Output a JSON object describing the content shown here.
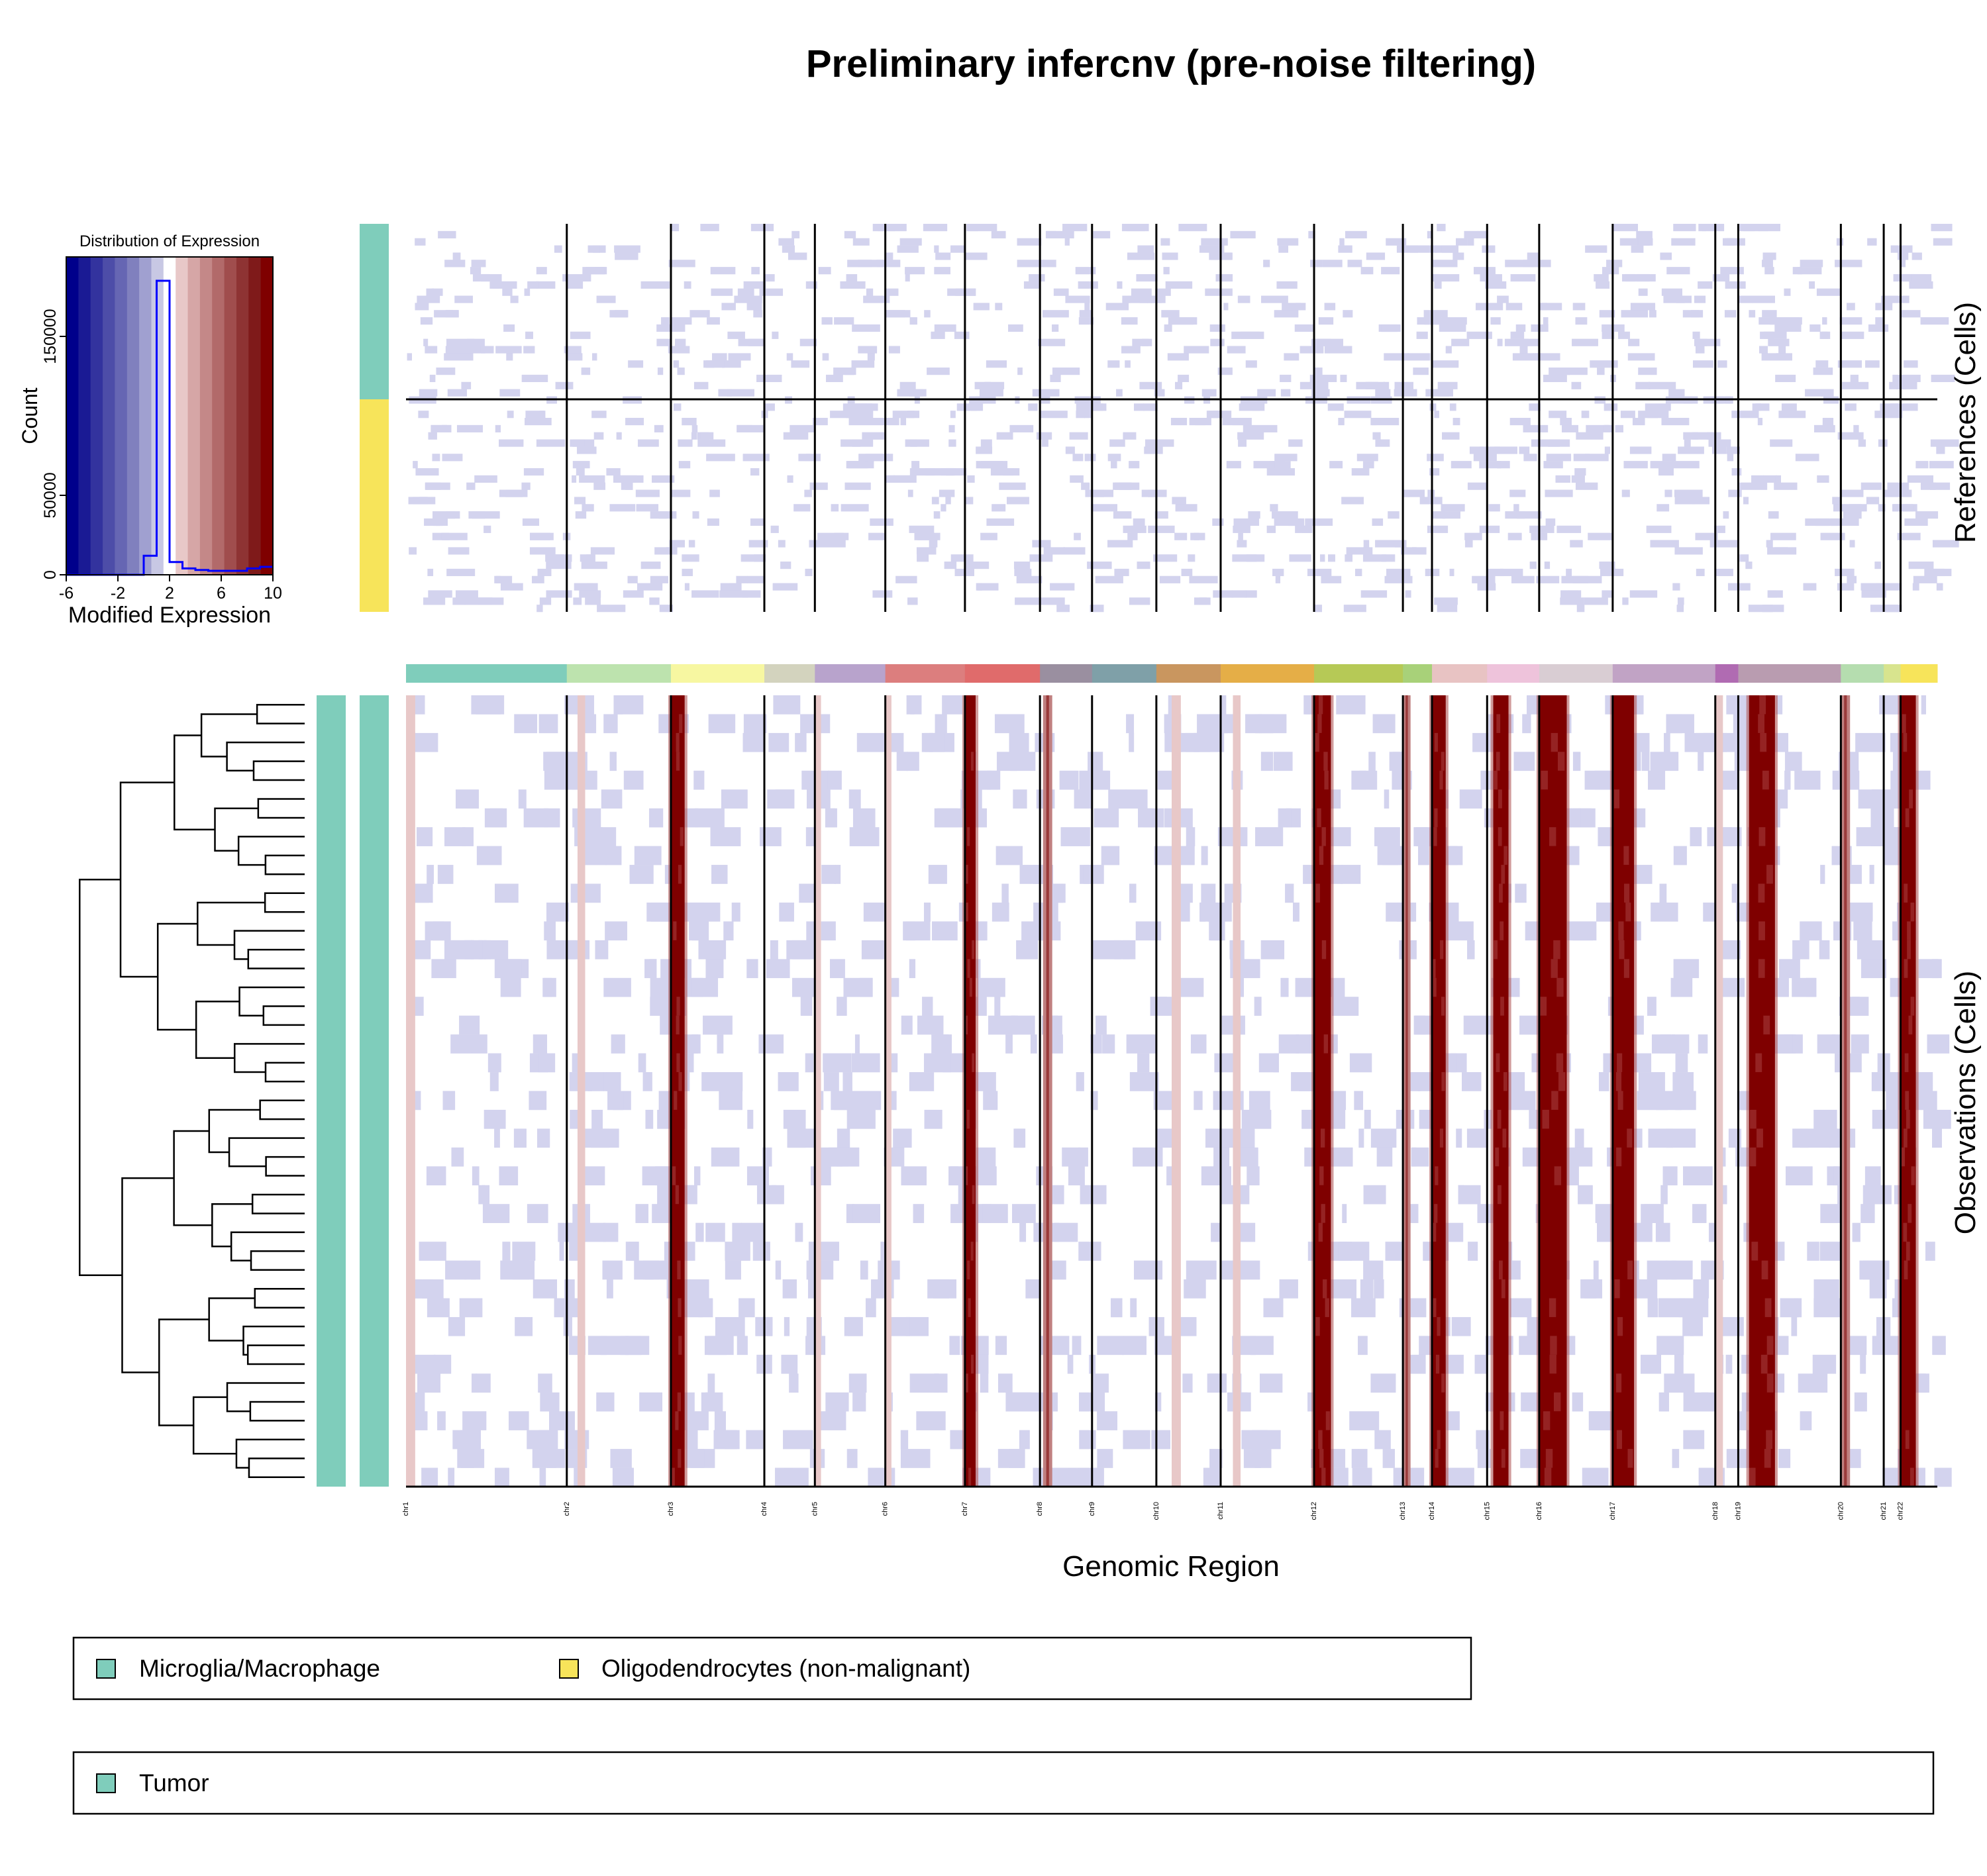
{
  "title": "Preliminary infercnv (pre-noise filtering)",
  "colors": {
    "low": "#00008B",
    "neutral": "#FFFFFF",
    "high": "#7F0000",
    "mild_loss": "#D3D3EE",
    "mild_gain": "#E8C8C8",
    "histogram": "#0000FF"
  },
  "chart_data": [
    {
      "type": "histogram",
      "title": "Distribution of Expression",
      "xlabel": "Modified Expression",
      "ylabel": "Count",
      "xlim": [
        -6,
        10
      ],
      "ylim": [
        0,
        200000
      ],
      "xticks": [
        "-6",
        "-2",
        "2",
        "6",
        "10"
      ],
      "yticks": [
        "0",
        "50000",
        "150000"
      ],
      "color_key": [
        "#00008B",
        "#1A1A94",
        "#33339E",
        "#4D4DA8",
        "#6666B3",
        "#8080BE",
        "#A0A0D0",
        "#C8C8E4",
        "#FFFFFF",
        "#E8C8C8",
        "#D6A6A6",
        "#C48888",
        "#B26A6A",
        "#A04D4D",
        "#8E3333",
        "#7F1A1A",
        "#7F0000"
      ],
      "bins": [
        {
          "x": [
            -6,
            0
          ],
          "count": 0
        },
        {
          "x": [
            0,
            1
          ],
          "count": 12000
        },
        {
          "x": [
            1,
            2
          ],
          "count": 185000
        },
        {
          "x": [
            2,
            3
          ],
          "count": 8000
        },
        {
          "x": [
            3,
            4
          ],
          "count": 4000
        },
        {
          "x": [
            4,
            5
          ],
          "count": 3000
        },
        {
          "x": [
            5,
            8
          ],
          "count": 2500
        },
        {
          "x": [
            8,
            9
          ],
          "count": 4000
        },
        {
          "x": [
            9,
            10
          ],
          "count": 5000
        }
      ]
    },
    {
      "type": "heatmap",
      "xlabel": "Genomic Region",
      "references_label": "References (Cells)",
      "observations_label": "Observations (Cells)",
      "chromosomes": [
        {
          "name": "chr1",
          "start": 0,
          "end": 10.5,
          "color": "#7FCDBB"
        },
        {
          "name": "chr2",
          "start": 10.5,
          "end": 17.3,
          "color": "#BDE3AE"
        },
        {
          "name": "chr3",
          "start": 17.3,
          "end": 23.4,
          "color": "#F7F7A1"
        },
        {
          "name": "chr4",
          "start": 23.4,
          "end": 26.7,
          "color": "#D3D3BE"
        },
        {
          "name": "chr5",
          "start": 26.7,
          "end": 31.3,
          "color": "#B8A3CC"
        },
        {
          "name": "chr6",
          "start": 31.3,
          "end": 36.5,
          "color": "#DC7E7E"
        },
        {
          "name": "chr7",
          "start": 36.5,
          "end": 41.4,
          "color": "#E06B6B"
        },
        {
          "name": "chr8",
          "start": 41.4,
          "end": 44.8,
          "color": "#9A8FA0"
        },
        {
          "name": "chr9",
          "start": 44.8,
          "end": 49.0,
          "color": "#7FA0A8"
        },
        {
          "name": "chr10",
          "start": 49.0,
          "end": 53.2,
          "color": "#C9965F"
        },
        {
          "name": "chr11",
          "start": 53.2,
          "end": 59.3,
          "color": "#E5AE47"
        },
        {
          "name": "chr12",
          "start": 59.3,
          "end": 65.1,
          "color": "#B6C956"
        },
        {
          "name": "chr13",
          "start": 65.1,
          "end": 67.0,
          "color": "#A8D179"
        },
        {
          "name": "chr14",
          "start": 67.0,
          "end": 70.6,
          "color": "#E8C3C3"
        },
        {
          "name": "chr15",
          "start": 70.6,
          "end": 74.0,
          "color": "#EEC3DB"
        },
        {
          "name": "chr16",
          "start": 74.0,
          "end": 78.8,
          "color": "#D9CDD3"
        },
        {
          "name": "chr17",
          "start": 78.8,
          "end": 85.5,
          "color": "#C1A3C5"
        },
        {
          "name": "chr18",
          "start": 85.5,
          "end": 87.0,
          "color": "#B06BB2"
        },
        {
          "name": "chr19",
          "start": 87.0,
          "end": 93.7,
          "color": "#B99CB0"
        },
        {
          "name": "chr20",
          "start": 93.7,
          "end": 96.5,
          "color": "#B5DDAF"
        },
        {
          "name": "chr21",
          "start": 96.5,
          "end": 97.6,
          "color": "#D8E48E"
        },
        {
          "name": "chr22",
          "start": 97.6,
          "end": 100.0,
          "color": "#F7E45A"
        }
      ],
      "gained_regions": [
        {
          "chrom": "chr1",
          "from": 0,
          "to": 0.6,
          "level": "mild"
        },
        {
          "chrom": "chr2",
          "from": 11.2,
          "to": 11.7,
          "level": "mild"
        },
        {
          "chrom": "chr3",
          "from": 17.3,
          "to": 18.2,
          "level": "strong"
        },
        {
          "chrom": "chr5",
          "from": 26.7,
          "to": 27.1,
          "level": "mild"
        },
        {
          "chrom": "chr6",
          "from": 31.3,
          "to": 31.7,
          "level": "mild"
        },
        {
          "chrom": "chr7",
          "from": 36.5,
          "to": 37.2,
          "level": "strong"
        },
        {
          "chrom": "chr8",
          "from": 41.6,
          "to": 42.2,
          "level": "medium"
        },
        {
          "chrom": "chr10",
          "from": 50.0,
          "to": 50.6,
          "level": "mild"
        },
        {
          "chrom": "chr11",
          "from": 54.0,
          "to": 54.5,
          "level": "mild"
        },
        {
          "chrom": "chr12",
          "from": 59.3,
          "to": 60.4,
          "level": "strong"
        },
        {
          "chrom": "chr13",
          "from": 65.1,
          "to": 65.6,
          "level": "medium"
        },
        {
          "chrom": "chr14",
          "from": 67.0,
          "to": 67.9,
          "level": "strong"
        },
        {
          "chrom": "chr15",
          "from": 71.0,
          "to": 72.0,
          "level": "strong"
        },
        {
          "chrom": "chr16",
          "from": 74.0,
          "to": 75.8,
          "level": "strong"
        },
        {
          "chrom": "chr17",
          "from": 78.8,
          "to": 80.2,
          "level": "strong"
        },
        {
          "chrom": "chr18",
          "from": 85.5,
          "to": 86.0,
          "level": "mild"
        },
        {
          "chrom": "chr19",
          "from": 87.7,
          "to": 89.4,
          "level": "strong"
        },
        {
          "chrom": "chr20",
          "from": 93.7,
          "to": 94.3,
          "level": "medium"
        },
        {
          "chrom": "chr22",
          "from": 97.6,
          "to": 98.6,
          "level": "strong"
        }
      ],
      "reference_groups": [
        {
          "name": "Microglia/Macrophage",
          "color": "#7FCDBB",
          "cells": 24
        },
        {
          "name": "Oligodendrocytes (non-malignant)",
          "color": "#F7E45A",
          "cells": 30
        }
      ],
      "observation_groups": [
        {
          "name": "Tumor",
          "color": "#7FCDBB",
          "cells": 42
        }
      ]
    }
  ],
  "legends": [
    {
      "items": [
        {
          "label": "Microglia/Macrophage",
          "color": "#7FCDBB"
        },
        {
          "label": "Oligodendrocytes (non-malignant)",
          "color": "#F7E45A"
        }
      ]
    },
    {
      "items": [
        {
          "label": "Tumor",
          "color": "#7FCDBB"
        }
      ]
    }
  ]
}
